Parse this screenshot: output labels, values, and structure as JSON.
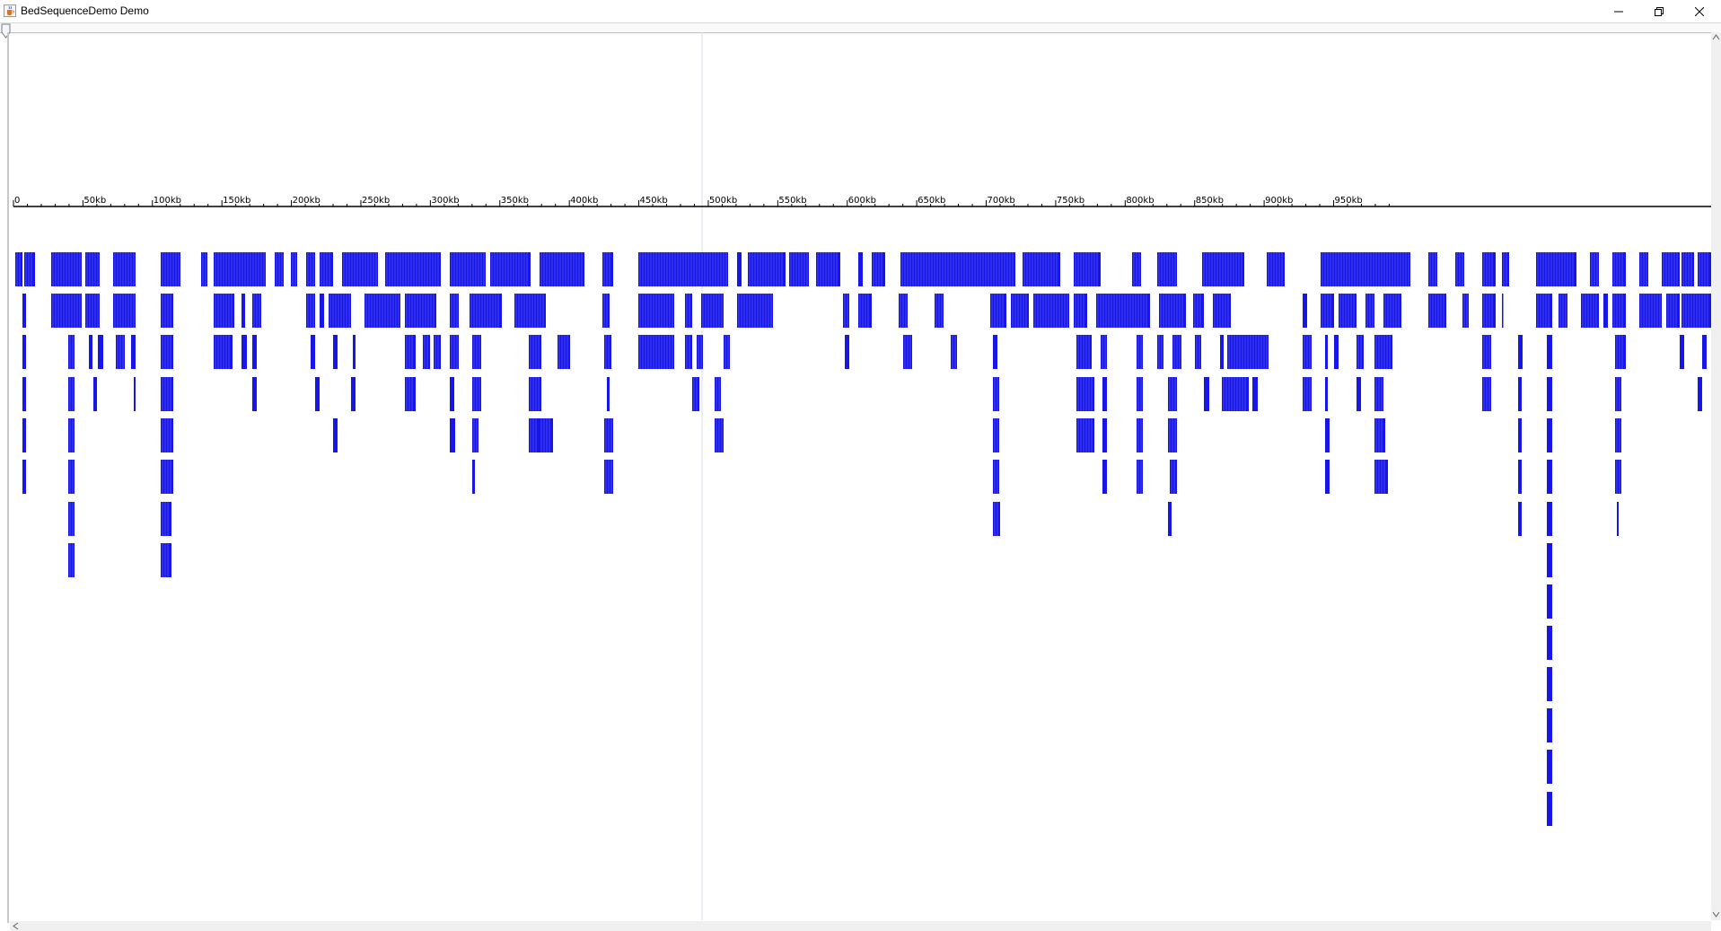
{
  "window": {
    "title": "BedSequenceDemo Demo",
    "app_icon": "java-cup-icon",
    "controls": [
      "minimize-icon",
      "restore-icon",
      "close-icon"
    ]
  },
  "ruler": {
    "ticks": [
      "0",
      "50kb",
      "100kb",
      "150kb",
      "200kb",
      "250kb",
      "300kb",
      "350kb",
      "400kb",
      "450kb",
      "500kb",
      "550kb",
      "600kb",
      "650kb",
      "700kb",
      "750kb",
      "800kb",
      "850kb",
      "900kb",
      "950kb"
    ]
  },
  "colors": {
    "feature": "#1616e8",
    "ruler": "#000000",
    "cursor_line": "#d6dce4",
    "background": "#ffffff"
  }
}
